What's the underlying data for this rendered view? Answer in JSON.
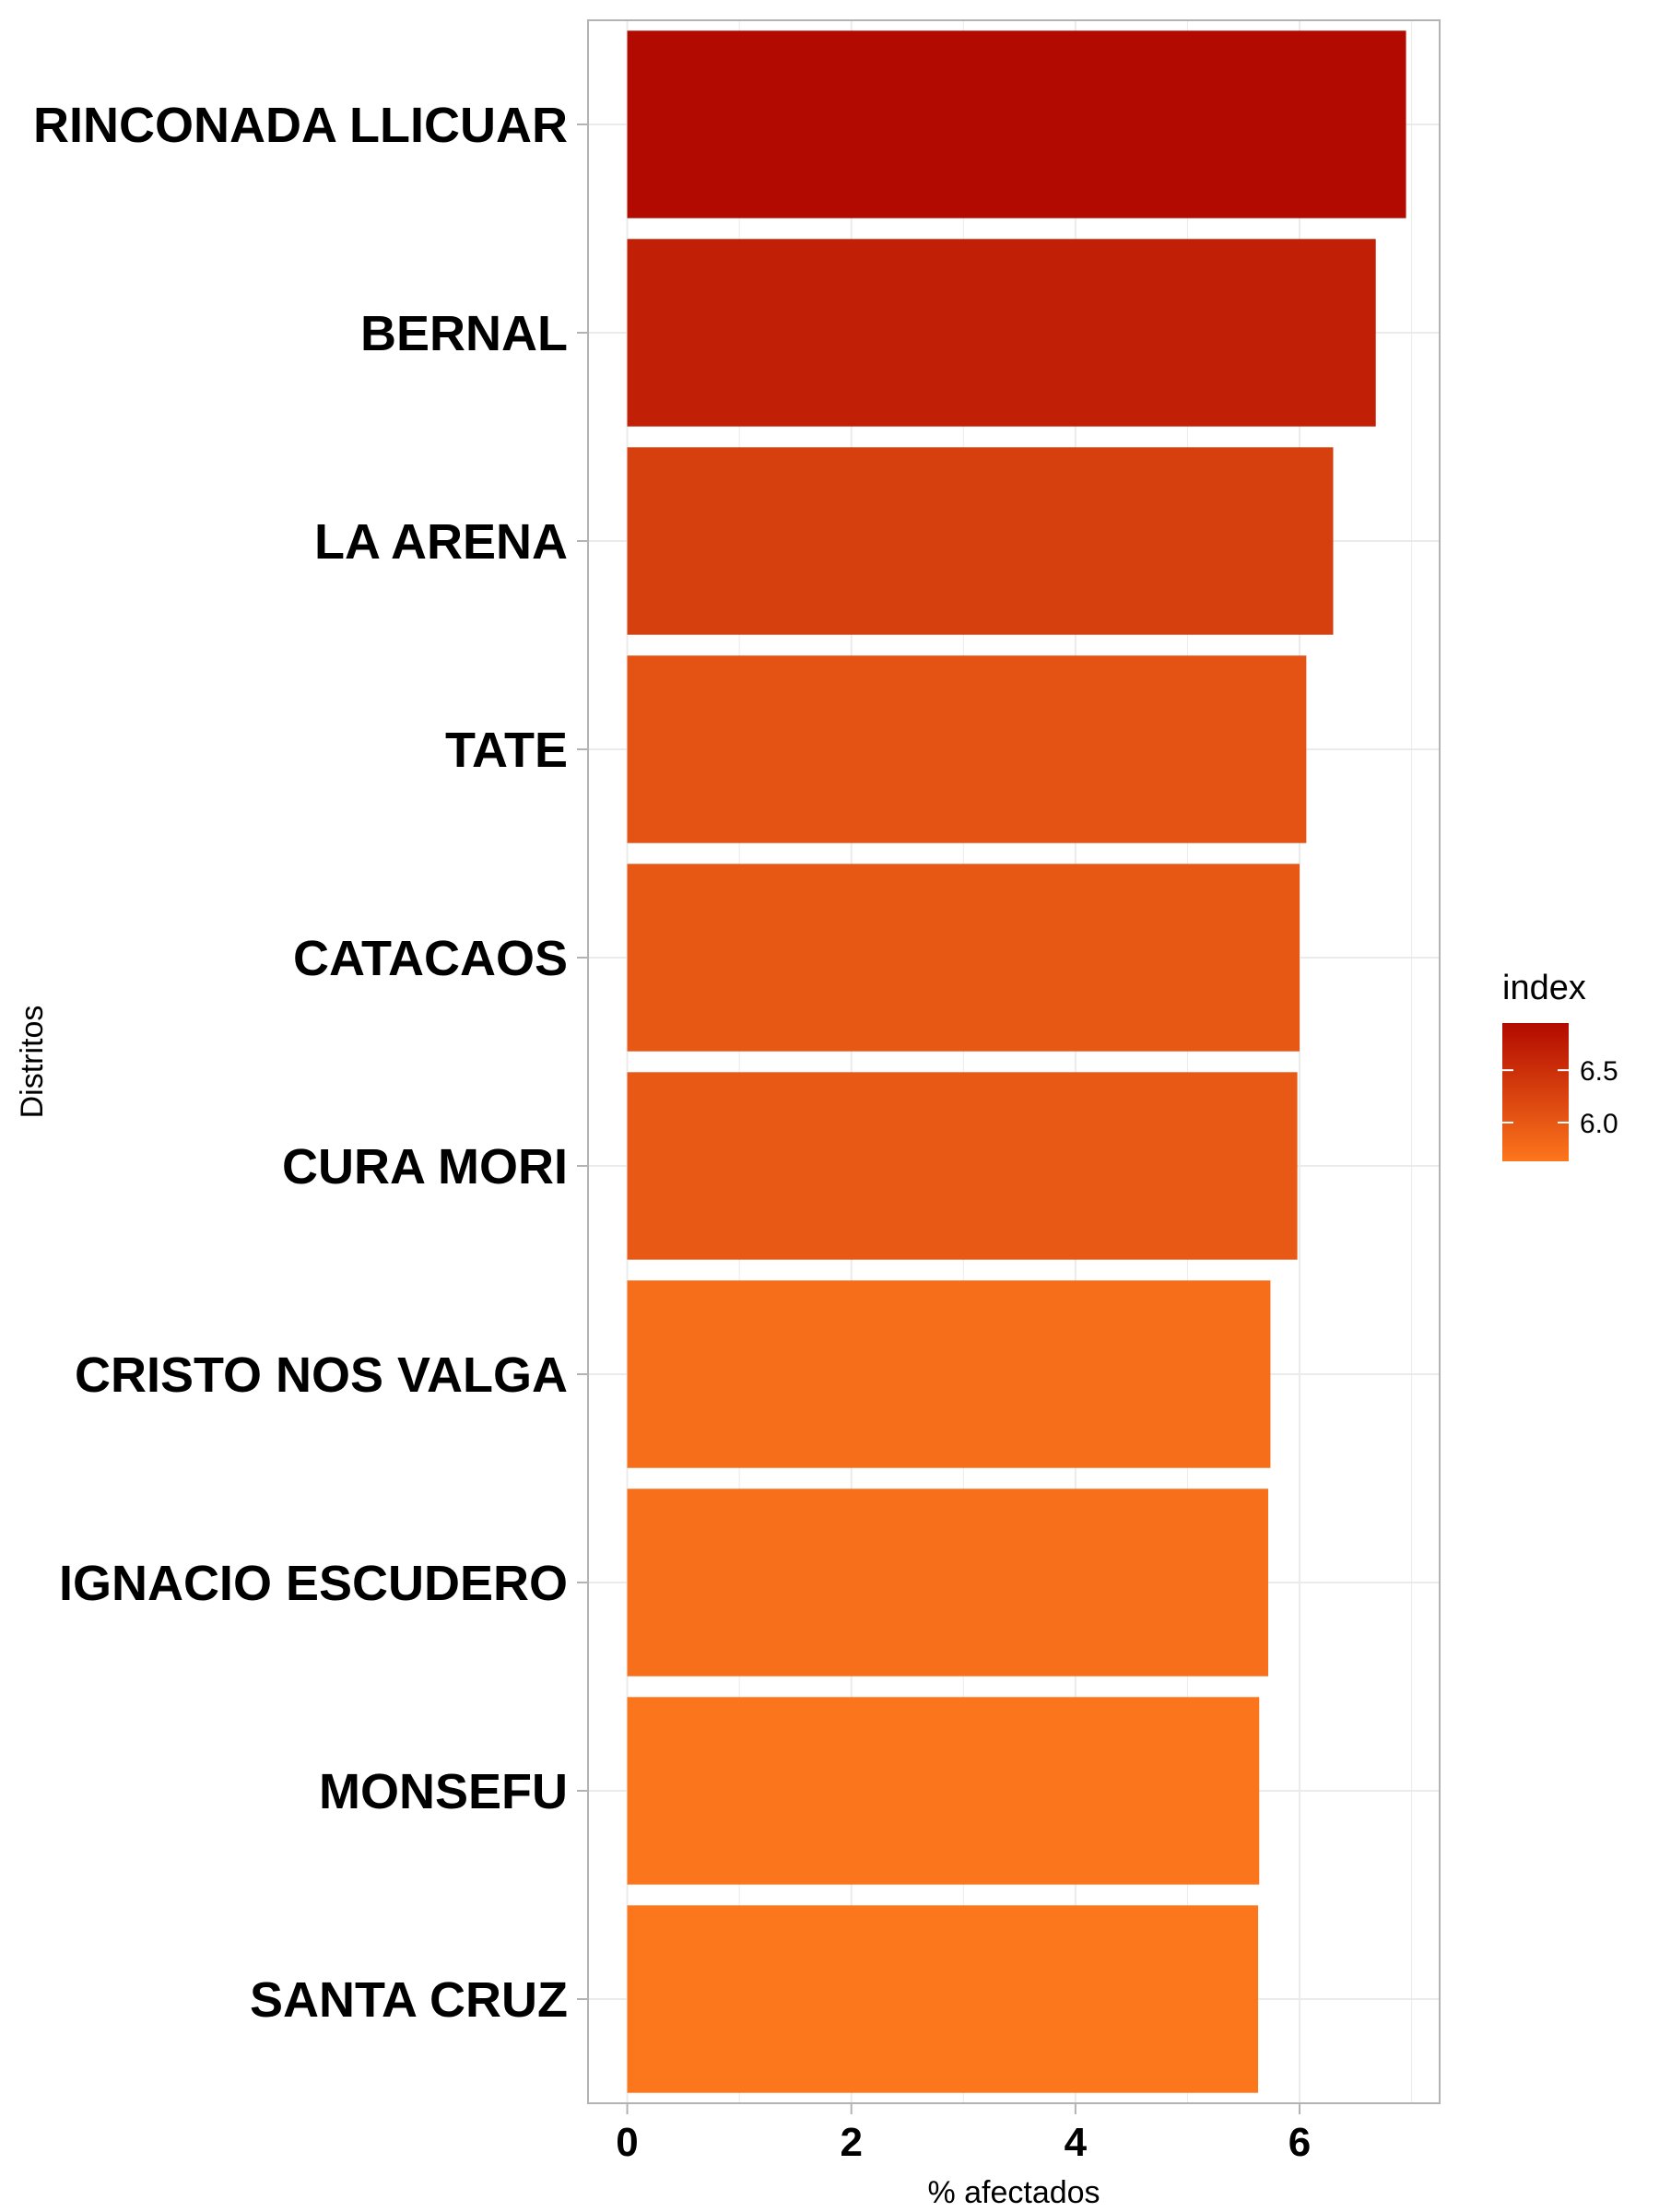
{
  "chart_data": {
    "type": "bar",
    "orientation": "horizontal",
    "categories": [
      "RINCONADA LLICUAR",
      "BERNAL",
      "LA ARENA",
      "TATE",
      "CATACAOS",
      "CURA MORI",
      "CRISTO NOS VALGA",
      "IGNACIO ESCUDERO",
      "MONSEFU",
      "SANTA CRUZ"
    ],
    "values": [
      6.95,
      6.68,
      6.3,
      6.06,
      6.0,
      5.98,
      5.74,
      5.72,
      5.64,
      5.63
    ],
    "xlabel": "% afectados",
    "ylabel": "Distritos",
    "xlim": [
      -0.35,
      7.25
    ],
    "x_ticks": [
      0,
      2,
      4,
      6
    ],
    "x_tick_labels": [
      "0",
      "2",
      "4",
      "6"
    ],
    "grid": true,
    "legend": {
      "title": "index",
      "placement": "right",
      "range": [
        5.63,
        6.95
      ],
      "ticks": [
        6.5,
        6.0
      ],
      "tick_labels": [
        "6.5",
        "6.0"
      ],
      "color_low": "#fc761c",
      "color_high": "#b20a00"
    }
  }
}
